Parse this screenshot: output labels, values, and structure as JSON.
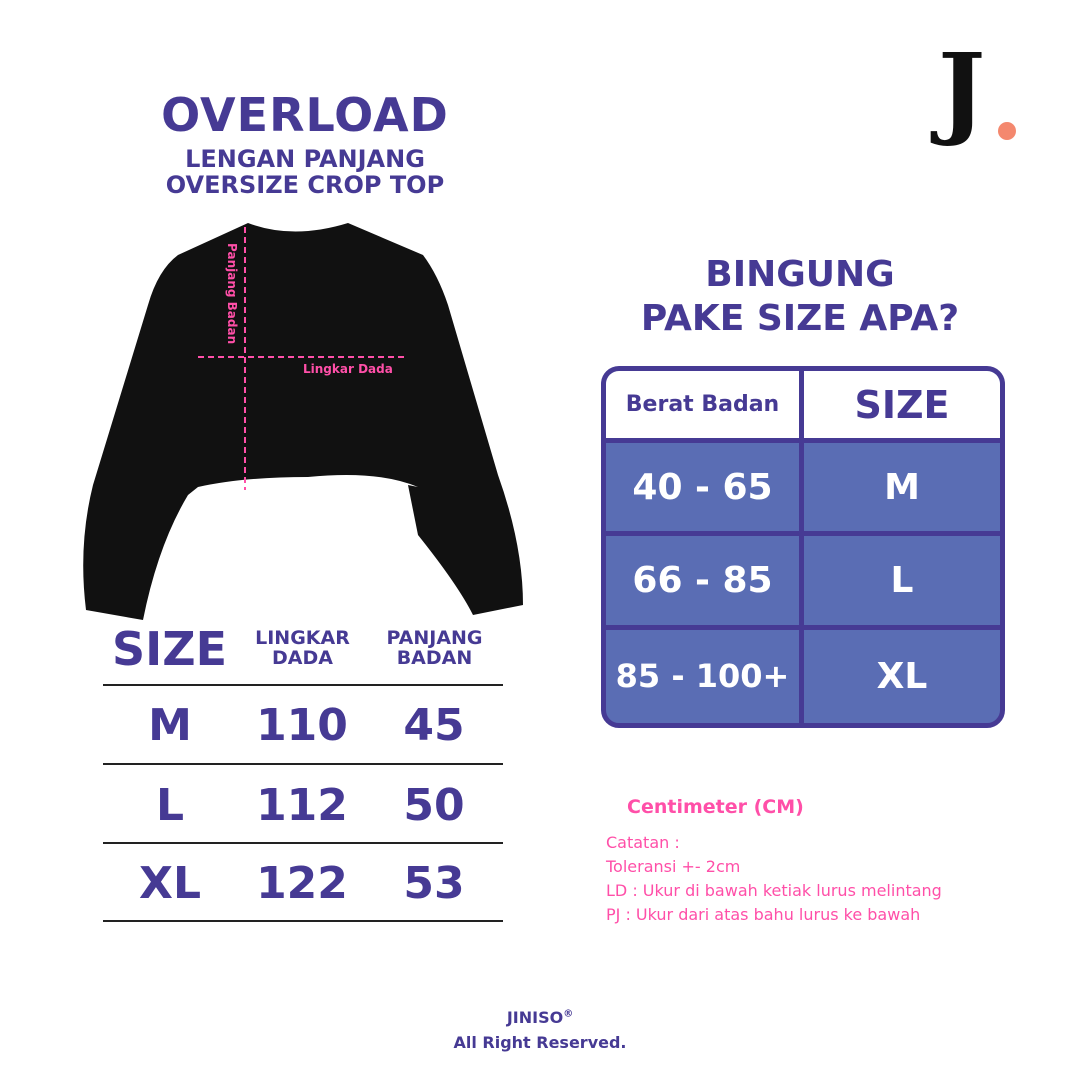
{
  "product": {
    "name": "OVERLOAD",
    "subtitle_1": "LENGAN PANJANG",
    "subtitle_2": "OVERSIZE CROP TOP"
  },
  "logo": {
    "text": "J."
  },
  "diagram": {
    "body_length_label": "Panjang Badan",
    "chest_label": "Lingkar Dada"
  },
  "size_table": {
    "headers": [
      "SIZE",
      "LINGKAR DADA",
      "PANJANG BADAN"
    ],
    "rows": [
      [
        "M",
        "110",
        "45"
      ],
      [
        "L",
        "112",
        "50"
      ],
      [
        "XL",
        "122",
        "53"
      ]
    ]
  },
  "weight_guide": {
    "title_1": "BINGUNG",
    "title_2": "PAKE SIZE APA?",
    "headers": [
      "Berat Badan",
      "SIZE"
    ],
    "rows": [
      [
        "40 - 65",
        "M"
      ],
      [
        "66 - 85",
        "L"
      ],
      [
        "85 - 100+",
        "XL"
      ]
    ]
  },
  "notes": {
    "unit": "Centimeter (CM)",
    "lines": [
      "Catatan :",
      "Toleransi +- 2cm",
      "LD : Ukur di bawah ketiak lurus melintang",
      "PJ : Ukur dari atas bahu lurus ke bawah"
    ]
  },
  "footer": {
    "brand": "JINISO",
    "reg": "®",
    "rights": "All Right Reserved."
  },
  "colors": {
    "primary": "#463a94",
    "table_fill": "#5a6db4",
    "accent": "#ff4fa8",
    "logo_dot": "#f4886e"
  }
}
